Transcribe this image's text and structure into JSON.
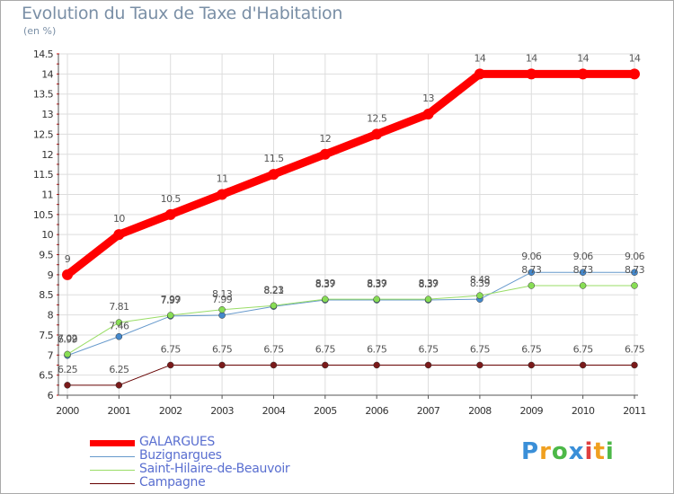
{
  "title": "Evolution du Taux de Taxe d'Habitation",
  "unit": "(en %)",
  "logo": {
    "letters": [
      "P",
      "r",
      "o",
      "x",
      "i",
      "t",
      "i"
    ],
    "colors": [
      "#3a8fd8",
      "#f0a020",
      "#4cb848",
      "#3a8fd8",
      "#e04040",
      "#f0a020",
      "#4cb848"
    ]
  },
  "legend": [
    {
      "label": "GALARGUES",
      "color": "#ff0000"
    },
    {
      "label": "Buzignargues",
      "color": "#6699cc"
    },
    {
      "label": "Saint-Hilaire-de-Beauvoir",
      "color": "#99dd66"
    },
    {
      "label": "Campagne",
      "color": "#660000"
    }
  ],
  "chart_data": {
    "type": "line",
    "x": [
      2000,
      2001,
      2002,
      2003,
      2004,
      2005,
      2006,
      2007,
      2008,
      2009,
      2010,
      2011
    ],
    "ylim": [
      6,
      14.5
    ],
    "yticks": [
      6,
      6.5,
      7,
      7.5,
      8,
      8.5,
      9,
      9.5,
      10,
      10.5,
      11,
      11.5,
      12,
      12.5,
      13,
      13.5,
      14,
      14.5
    ],
    "series": [
      {
        "name": "GALARGUES",
        "color": "#ff0000",
        "values": [
          9,
          10,
          10.5,
          11,
          11.5,
          12,
          12.5,
          13,
          14,
          14,
          14,
          14
        ],
        "labels": [
          "9",
          "10",
          "10.5",
          "11",
          "11.5",
          "12",
          "12.5",
          "13",
          "14",
          "14",
          "14",
          "14"
        ]
      },
      {
        "name": "Buzignargues",
        "color": "#6699cc",
        "values": [
          6.99,
          7.46,
          7.97,
          7.99,
          8.21,
          8.37,
          8.37,
          8.37,
          8.39,
          9.06,
          9.06,
          9.06
        ],
        "labels": [
          "6.99",
          "7.46",
          "7.97",
          "7.99",
          "8.21",
          "8.37",
          "8.37",
          "8.37",
          "8.39",
          "9.06",
          "9.06",
          "9.06"
        ]
      },
      {
        "name": "Saint-Hilaire-de-Beauvoir",
        "color": "#99dd66",
        "values": [
          7.02,
          7.81,
          7.99,
          8.13,
          8.23,
          8.39,
          8.39,
          8.39,
          8.48,
          8.73,
          8.73,
          8.73
        ],
        "labels": [
          "7.02",
          "7.81",
          "7.99",
          "8.13",
          "8.23",
          "8.39",
          "8.39",
          "8.39",
          "8.48",
          "8.73",
          "8.73",
          "8.73"
        ]
      },
      {
        "name": "Campagne",
        "color": "#660000",
        "values": [
          6.25,
          6.25,
          6.75,
          6.75,
          6.75,
          6.75,
          6.75,
          6.75,
          6.75,
          6.75,
          6.75,
          6.75
        ],
        "labels": [
          "6.25",
          "6.25",
          "6.75",
          "6.75",
          "6.75",
          "6.75",
          "6.75",
          "6.75",
          "6.75",
          "6.75",
          "6.75",
          "6.75"
        ]
      }
    ]
  }
}
